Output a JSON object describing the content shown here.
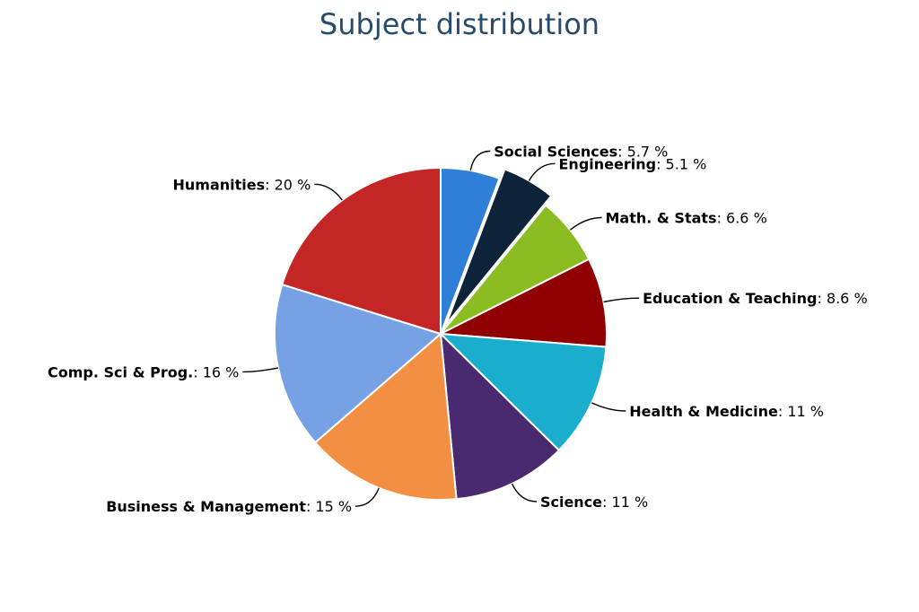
{
  "chart_data": {
    "type": "pie",
    "title": "Subject distribution",
    "unit": "%",
    "slices": [
      {
        "name": "Social Sciences",
        "value": 5.7,
        "display": "5.7",
        "color": "#2f7ed8",
        "exploded": false
      },
      {
        "name": "Engineering",
        "value": 5.1,
        "display": "5.1",
        "color": "#0d233a",
        "exploded": true
      },
      {
        "name": "Math. & Stats",
        "value": 6.6,
        "display": "6.6",
        "color": "#8bbc21",
        "exploded": false
      },
      {
        "name": "Education & Teaching",
        "value": 8.6,
        "display": "8.6",
        "color": "#910000",
        "exploded": false
      },
      {
        "name": "Health & Medicine",
        "value": 11,
        "display": "11",
        "color": "#1aadce",
        "exploded": false
      },
      {
        "name": "Science",
        "value": 11,
        "display": "11",
        "color": "#492970",
        "exploded": false
      },
      {
        "name": "Business & Management",
        "value": 15,
        "display": "15",
        "color": "#f28f43",
        "exploded": false
      },
      {
        "name": "Comp. Sci & Prog.",
        "value": 16,
        "display": "16",
        "color": "#77a1e5",
        "exploded": false
      },
      {
        "name": "Humanities",
        "value": 20,
        "display": "20",
        "color": "#c42525",
        "exploded": false
      }
    ]
  }
}
